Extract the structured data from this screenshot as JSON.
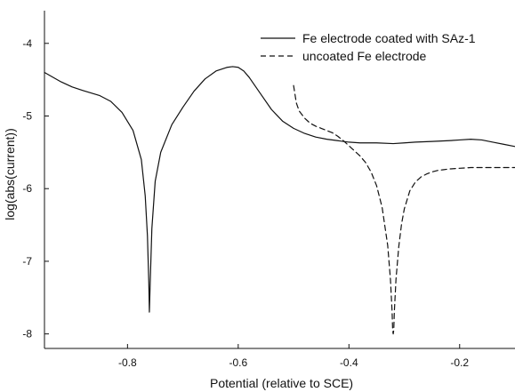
{
  "chart_data": {
    "type": "line",
    "title": "",
    "xlabel": "Potential (relative to SCE)",
    "ylabel": "log(abs(current))",
    "xlim": [
      -0.95,
      -0.1
    ],
    "ylim": [
      -8.2,
      -3.55
    ],
    "xticks": [
      -0.8,
      -0.6,
      -0.4,
      -0.2
    ],
    "yticks": [
      -8,
      -7,
      -6,
      -5,
      -4
    ],
    "xtick_labels": [
      "-0.8",
      "-0.6",
      "-0.4",
      "-0.2"
    ],
    "ytick_labels": [
      "-8",
      "-7",
      "-6",
      "-5",
      "-4"
    ],
    "grid": false,
    "legend_position": "top-right",
    "series": [
      {
        "name": "Fe electrode coated with SAz-1",
        "style": "solid",
        "color": "#111111",
        "x": [
          -0.95,
          -0.92,
          -0.9,
          -0.88,
          -0.85,
          -0.83,
          -0.81,
          -0.79,
          -0.775,
          -0.768,
          -0.764,
          -0.7615,
          -0.7605,
          -0.759,
          -0.756,
          -0.75,
          -0.74,
          -0.72,
          -0.7,
          -0.68,
          -0.66,
          -0.64,
          -0.62,
          -0.61,
          -0.6,
          -0.59,
          -0.58,
          -0.56,
          -0.54,
          -0.52,
          -0.5,
          -0.48,
          -0.46,
          -0.44,
          -0.42,
          -0.4,
          -0.38,
          -0.35,
          -0.32,
          -0.3,
          -0.28,
          -0.25,
          -0.22,
          -0.2,
          -0.18,
          -0.16,
          -0.14,
          -0.12,
          -0.1
        ],
        "y": [
          -4.4,
          -4.53,
          -4.6,
          -4.65,
          -4.72,
          -4.8,
          -4.95,
          -5.2,
          -5.6,
          -6.1,
          -6.65,
          -7.3,
          -7.7,
          -7.3,
          -6.55,
          -5.9,
          -5.5,
          -5.12,
          -4.88,
          -4.66,
          -4.49,
          -4.38,
          -4.33,
          -4.32,
          -4.33,
          -4.38,
          -4.47,
          -4.69,
          -4.91,
          -5.07,
          -5.17,
          -5.24,
          -5.29,
          -5.32,
          -5.34,
          -5.36,
          -5.37,
          -5.37,
          -5.38,
          -5.37,
          -5.36,
          -5.35,
          -5.34,
          -5.33,
          -5.32,
          -5.33,
          -5.36,
          -5.39,
          -5.42
        ]
      },
      {
        "name": "uncoated Fe electrode",
        "style": "dashed",
        "color": "#111111",
        "x": [
          -0.5,
          -0.495,
          -0.49,
          -0.48,
          -0.47,
          -0.46,
          -0.45,
          -0.44,
          -0.43,
          -0.42,
          -0.41,
          -0.4,
          -0.39,
          -0.38,
          -0.37,
          -0.36,
          -0.35,
          -0.34,
          -0.33,
          -0.325,
          -0.322,
          -0.321,
          -0.32,
          -0.319,
          -0.318,
          -0.315,
          -0.31,
          -0.305,
          -0.3,
          -0.29,
          -0.28,
          -0.27,
          -0.26,
          -0.25,
          -0.24,
          -0.23,
          -0.22,
          -0.2,
          -0.18,
          -0.16,
          -0.14,
          -0.12,
          -0.1
        ],
        "y": [
          -4.58,
          -4.82,
          -4.93,
          -5.03,
          -5.1,
          -5.14,
          -5.17,
          -5.2,
          -5.23,
          -5.28,
          -5.34,
          -5.41,
          -5.48,
          -5.55,
          -5.64,
          -5.77,
          -5.96,
          -6.26,
          -6.78,
          -7.25,
          -7.7,
          -7.95,
          -8.0,
          -7.95,
          -7.7,
          -7.25,
          -6.8,
          -6.49,
          -6.28,
          -6.03,
          -5.91,
          -5.84,
          -5.8,
          -5.77,
          -5.75,
          -5.74,
          -5.73,
          -5.72,
          -5.71,
          -5.71,
          -5.71,
          -5.71,
          -5.71
        ]
      }
    ]
  }
}
